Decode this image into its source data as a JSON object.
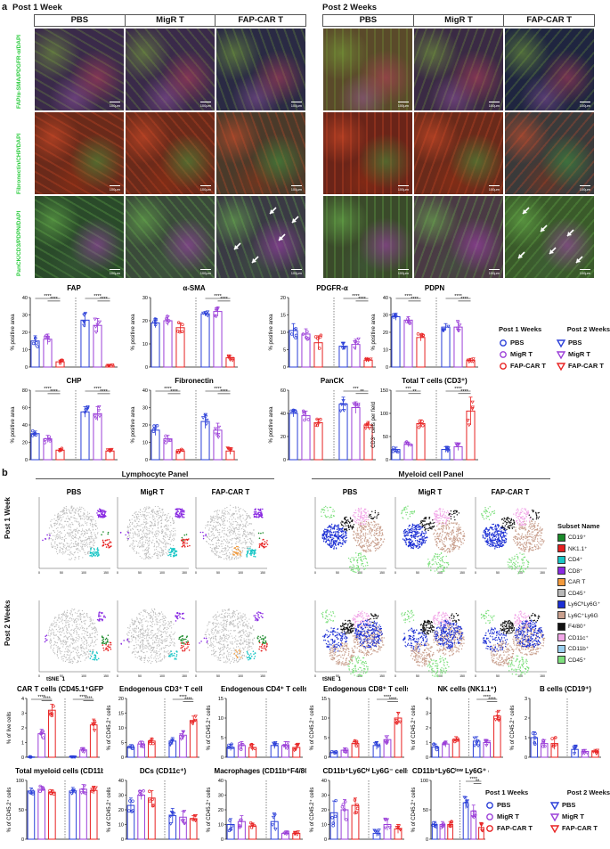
{
  "panel_a": {
    "letter": "a",
    "post1": "Post 1 Week",
    "post2": "Post 2 Weeks",
    "groups": [
      "PBS",
      "MigR T",
      "FAP-CAR T"
    ],
    "row_labels": [
      "FAP/α-SMA/PDGFR-α/DAPI",
      "Fibronectin/CHP/DAPI",
      "PanCK/CD3/PDPN/DAPI"
    ],
    "scale_bar": "100μm",
    "axis_area": "% positive area",
    "axis_cd3": "CD3⁺ cells per field",
    "legend": {
      "week1_title": "Post 1 Weeks",
      "week2_title": "Post 2 Weeks",
      "items": [
        "PBS",
        "MigR T",
        "FAP-CAR T"
      ]
    }
  },
  "panel_b": {
    "letter": "b",
    "lymph_title": "Lymphocyte Panel",
    "myeloid_title": "Myeloid cell Panel",
    "groups": [
      "PBS",
      "MigR T",
      "FAP-CAR T"
    ],
    "row1": "Post 1 Week",
    "row2": "Post 2 Weeks",
    "x_axis": "tSNE_1",
    "y_axis": "tSNE_2",
    "subset_title": "Subset Name",
    "subsets": [
      {
        "name": "CD19⁺",
        "color": "#1a8a2a"
      },
      {
        "name": "NK1.1⁺",
        "color": "#e62020"
      },
      {
        "name": "CD4⁺",
        "color": "#19c6c6"
      },
      {
        "name": "CD8⁺",
        "color": "#8a2be2"
      },
      {
        "name": "CAR T",
        "color": "#f39a3c"
      },
      {
        "name": "CD45⁺",
        "color": "#b8b8b8"
      },
      {
        "name": "Ly6CʰLy6G⁺",
        "color": "#1c2fd4"
      },
      {
        "name": "Ly6C⁺Ly6G",
        "color": "#c9a08e"
      },
      {
        "name": "F4/80⁺",
        "color": "#111111"
      },
      {
        "name": "CD11c⁺",
        "color": "#f2a7e8"
      },
      {
        "name": "CD11b⁺",
        "color": "#9ad0f0"
      },
      {
        "name": "CD45⁺ ",
        "color": "#7ee07e"
      }
    ],
    "tsne_ticks": [
      "0",
      "50",
      "100",
      "150"
    ],
    "legend": {
      "week1_title": "Post 1 Weeks",
      "week2_title": "Post 2 Weeks",
      "items": [
        "PBS",
        "MigR T",
        "FAP-CAR T"
      ]
    }
  },
  "colors": {
    "pbs": "#2b3fd8",
    "migr": "#9b3fd8",
    "car": "#e82323"
  },
  "chart_data": [
    {
      "type": "bar",
      "title": "FAP",
      "ylabel": "% positive area",
      "ylim": [
        0,
        40
      ],
      "yticks": [
        0,
        10,
        20,
        30,
        40
      ],
      "categories": [
        "PBS",
        "MigR T",
        "FAP-CAR T",
        "PBS",
        "MigR T",
        "FAP-CAR T"
      ],
      "values": [
        15,
        16,
        3,
        27,
        24,
        1
      ],
      "errors": [
        3,
        3,
        1,
        4,
        4,
        0.5
      ],
      "sig": [
        {
          "a": 0,
          "b": 2,
          "label": "****"
        },
        {
          "a": 1,
          "b": 2,
          "label": "****"
        },
        {
          "a": 3,
          "b": 5,
          "label": "****"
        },
        {
          "a": 4,
          "b": 5,
          "label": "****"
        }
      ]
    },
    {
      "type": "bar",
      "title": "α-SMA",
      "ylabel": "% positive area",
      "ylim": [
        0,
        30
      ],
      "yticks": [
        0,
        10,
        20,
        30
      ],
      "categories": [
        "PBS",
        "MigR T",
        "FAP-CAR T",
        "PBS",
        "MigR T",
        "FAP-CAR T"
      ],
      "values": [
        19,
        20,
        17,
        23,
        24,
        4
      ],
      "errors": [
        2,
        2,
        2,
        1,
        2,
        1
      ],
      "sig": [
        {
          "a": 3,
          "b": 5,
          "label": "****"
        },
        {
          "a": 4,
          "b": 5,
          "label": "****"
        }
      ]
    },
    {
      "type": "bar",
      "title": "PDGFR-α",
      "ylabel": "% positive area",
      "ylim": [
        0,
        20
      ],
      "yticks": [
        0,
        5,
        10,
        15,
        20
      ],
      "categories": [
        "PBS",
        "MigR T",
        "FAP-CAR T",
        "PBS",
        "MigR T",
        "FAP-CAR T"
      ],
      "values": [
        10.5,
        9.5,
        7,
        6,
        6.5,
        2
      ],
      "errors": [
        2,
        1.5,
        2,
        1,
        1.5,
        0.5
      ],
      "sig": [
        {
          "a": 3,
          "b": 5,
          "label": "****"
        },
        {
          "a": 4,
          "b": 5,
          "label": "****"
        }
      ]
    },
    {
      "type": "bar",
      "title": "PDPN",
      "ylabel": "% positive area",
      "ylim": [
        0,
        40
      ],
      "yticks": [
        0,
        10,
        20,
        30,
        40
      ],
      "categories": [
        "PBS",
        "MigR T",
        "FAP-CAR T",
        "PBS",
        "MigR T",
        "FAP-CAR T"
      ],
      "values": [
        29,
        27,
        17,
        23,
        23,
        4
      ],
      "errors": [
        2,
        2,
        2,
        2,
        3,
        1
      ],
      "sig": [
        {
          "a": 0,
          "b": 2,
          "label": "****"
        },
        {
          "a": 1,
          "b": 2,
          "label": "****"
        },
        {
          "a": 3,
          "b": 5,
          "label": "****"
        },
        {
          "a": 4,
          "b": 5,
          "label": "****"
        }
      ]
    },
    {
      "type": "bar",
      "title": "CHP",
      "ylabel": "% positive area",
      "ylim": [
        0,
        80
      ],
      "yticks": [
        0,
        20,
        40,
        60,
        80
      ],
      "categories": [
        "PBS",
        "MigR T",
        "FAP-CAR T",
        "PBS",
        "MigR T",
        "FAP-CAR T"
      ],
      "values": [
        30,
        24,
        11,
        55,
        53,
        10
      ],
      "errors": [
        3,
        4,
        2,
        6,
        8,
        2
      ],
      "sig": [
        {
          "a": 0,
          "b": 2,
          "label": "****"
        },
        {
          "a": 1,
          "b": 2,
          "label": "****"
        },
        {
          "a": 3,
          "b": 5,
          "label": "****"
        },
        {
          "a": 4,
          "b": 5,
          "label": "****"
        }
      ]
    },
    {
      "type": "bar",
      "title": "Fibronectin",
      "ylabel": "% positive area",
      "ylim": [
        0,
        40
      ],
      "yticks": [
        0,
        10,
        20,
        30,
        40
      ],
      "categories": [
        "PBS",
        "MigR T",
        "FAP-CAR T",
        "PBS",
        "MigR T",
        "FAP-CAR T"
      ],
      "values": [
        17,
        12,
        5,
        22,
        17,
        5
      ],
      "errors": [
        3,
        2,
        1,
        4,
        4,
        2
      ],
      "sig": [
        {
          "a": 0,
          "b": 2,
          "label": "****"
        },
        {
          "a": 1,
          "b": 2,
          "label": "****"
        },
        {
          "a": 3,
          "b": 5,
          "label": "****"
        },
        {
          "a": 4,
          "b": 5,
          "label": "****"
        }
      ]
    },
    {
      "type": "bar",
      "title": "PanCK",
      "ylabel": "% positive area",
      "ylim": [
        0,
        60
      ],
      "yticks": [
        0,
        20,
        40,
        60
      ],
      "categories": [
        "PBS",
        "MigR T",
        "FAP-CAR T",
        "PBS",
        "MigR T",
        "FAP-CAR T"
      ],
      "values": [
        40,
        38,
        32,
        48,
        45,
        30
      ],
      "errors": [
        3,
        4,
        3,
        6,
        5,
        3
      ],
      "sig": [
        {
          "a": 3,
          "b": 5,
          "label": "***"
        },
        {
          "a": 4,
          "b": 5,
          "label": "**"
        }
      ]
    },
    {
      "type": "bar",
      "title": "Total T cells (CD3⁺)",
      "ylabel": "CD3⁺ cells per field",
      "ylim": [
        0,
        150
      ],
      "yticks": [
        0,
        50,
        100,
        150
      ],
      "categories": [
        "PBS",
        "MigR T",
        "FAP-CAR T",
        "PBS",
        "MigR T",
        "FAP-CAR T"
      ],
      "values": [
        22,
        33,
        78,
        22,
        28,
        105
      ],
      "errors": [
        5,
        5,
        8,
        6,
        8,
        30
      ],
      "sig": [
        {
          "a": 0,
          "b": 2,
          "label": "***"
        },
        {
          "a": 1,
          "b": 2,
          "label": "**"
        },
        {
          "a": 3,
          "b": 5,
          "label": "****"
        },
        {
          "a": 4,
          "b": 5,
          "label": "****"
        }
      ]
    },
    {
      "type": "bar",
      "title": "CAR T cells (CD45.1⁺GFP⁺)",
      "ylabel": "% of live cells",
      "ylim": [
        0,
        4
      ],
      "yticks": [
        0,
        1,
        2,
        3,
        4
      ],
      "categories": [
        "PBS",
        "MigR T",
        "FAP-CAR T",
        "PBS",
        "MigR T",
        "FAP-CAR T"
      ],
      "values": [
        0.02,
        1.6,
        3.2,
        0.03,
        0.5,
        2.2
      ],
      "errors": [
        0.01,
        0.3,
        0.4,
        0.02,
        0.15,
        0.4
      ],
      "sig": [
        {
          "a": 0,
          "b": 2,
          "label": "****"
        },
        {
          "a": 1,
          "b": 2,
          "label": "****"
        },
        {
          "a": 3,
          "b": 5,
          "label": "****"
        },
        {
          "a": 4,
          "b": 5,
          "label": "****"
        }
      ]
    },
    {
      "type": "bar",
      "title": "Endogenous CD3⁺ T cells",
      "ylabel": "% of CD45.2⁺ cells",
      "ylim": [
        0,
        20
      ],
      "yticks": [
        0,
        5,
        10,
        15,
        20
      ],
      "categories": [
        "PBS",
        "MigR T",
        "FAP-CAR T",
        "PBS",
        "MigR T",
        "FAP-CAR T"
      ],
      "values": [
        3.5,
        4.5,
        5.5,
        5.5,
        7.5,
        12.5
      ],
      "errors": [
        0.8,
        1,
        1,
        1.2,
        1.5,
        1.5
      ],
      "sig": [
        {
          "a": 3,
          "b": 5,
          "label": "****"
        },
        {
          "a": 4,
          "b": 5,
          "label": "****"
        }
      ]
    },
    {
      "type": "bar",
      "title": "Endogenous CD4⁺ T cells",
      "ylabel": "% of CD45.2⁺ cells",
      "ylim": [
        0,
        15
      ],
      "yticks": [
        0,
        5,
        10,
        15
      ],
      "categories": [
        "PBS",
        "MigR T",
        "FAP-CAR T",
        "PBS",
        "MigR T",
        "FAP-CAR T"
      ],
      "values": [
        2.5,
        3,
        2.5,
        3,
        3,
        2.5
      ],
      "errors": [
        0.8,
        1,
        0.8,
        0.8,
        1,
        0.8
      ],
      "sig": []
    },
    {
      "type": "bar",
      "title": "Endogenous CD8⁺ T cells",
      "ylabel": "% of CD45.2⁺ cells",
      "ylim": [
        0,
        15
      ],
      "yticks": [
        0,
        5,
        10,
        15
      ],
      "categories": [
        "PBS",
        "MigR T",
        "FAP-CAR T",
        "PBS",
        "MigR T",
        "FAP-CAR T"
      ],
      "values": [
        1.2,
        1.8,
        3.5,
        3,
        4.5,
        10
      ],
      "errors": [
        0.4,
        0.6,
        0.8,
        1,
        1,
        1.5
      ],
      "sig": [
        {
          "a": 3,
          "b": 5,
          "label": "****"
        },
        {
          "a": 4,
          "b": 5,
          "label": "****"
        }
      ]
    },
    {
      "type": "bar",
      "title": "NK cells (NK1.1⁺)",
      "ylabel": "% of CD45.2⁺ cells",
      "ylim": [
        0,
        4
      ],
      "yticks": [
        0,
        1,
        2,
        3,
        4
      ],
      "categories": [
        "PBS",
        "MigR T",
        "FAP-CAR T",
        "PBS",
        "MigR T",
        "FAP-CAR T"
      ],
      "values": [
        0.7,
        0.9,
        1.2,
        1.1,
        1.0,
        2.8
      ],
      "errors": [
        0.2,
        0.2,
        0.2,
        0.3,
        0.2,
        0.3
      ],
      "sig": [
        {
          "a": 3,
          "b": 5,
          "label": "****"
        },
        {
          "a": 4,
          "b": 5,
          "label": "****"
        }
      ]
    },
    {
      "type": "bar",
      "title": "B cells (CD19⁺)",
      "ylabel": "% of CD45.2⁺ cells",
      "ylim": [
        0,
        3
      ],
      "yticks": [
        0,
        1,
        2,
        3
      ],
      "categories": [
        "PBS",
        "MigR T",
        "FAP-CAR T",
        "PBS",
        "MigR T",
        "FAP-CAR T"
      ],
      "values": [
        1.0,
        0.7,
        0.7,
        0.4,
        0.3,
        0.3
      ],
      "errors": [
        0.3,
        0.2,
        0.3,
        0.2,
        0.1,
        0.1
      ],
      "sig": []
    },
    {
      "type": "bar",
      "title": "Total myeloid cells (CD11b⁺)",
      "ylabel": "% of CD45.2⁺ cells",
      "ylim": [
        0,
        100
      ],
      "yticks": [
        0,
        50,
        100
      ],
      "categories": [
        "PBS",
        "MigR T",
        "FAP-CAR T",
        "PBS",
        "MigR T",
        "FAP-CAR T"
      ],
      "values": [
        82,
        85,
        80,
        82,
        85,
        83
      ],
      "errors": [
        5,
        5,
        4,
        6,
        8,
        6
      ],
      "sig": []
    },
    {
      "type": "bar",
      "title": "DCs (CD11c⁺)",
      "ylabel": "% of CD45.2⁺ cells",
      "ylim": [
        0,
        40
      ],
      "yticks": [
        0,
        10,
        20,
        30,
        40
      ],
      "categories": [
        "PBS",
        "MigR T",
        "FAP-CAR T",
        "PBS",
        "MigR T",
        "FAP-CAR T"
      ],
      "values": [
        23,
        30,
        28,
        16,
        15,
        14
      ],
      "errors": [
        5,
        3,
        5,
        5,
        4,
        2
      ],
      "sig": []
    },
    {
      "type": "bar",
      "title": "Macrophages (CD11b⁺F4/80⁺)",
      "ylabel": "% of CD45.2⁺ cells",
      "ylim": [
        0,
        40
      ],
      "yticks": [
        0,
        10,
        20,
        30,
        40
      ],
      "categories": [
        "PBS",
        "MigR T",
        "FAP-CAR T",
        "PBS",
        "MigR T",
        "FAP-CAR T"
      ],
      "values": [
        10,
        12,
        9,
        12,
        4,
        4
      ],
      "errors": [
        4,
        4,
        2,
        5,
        1,
        1
      ],
      "sig": []
    },
    {
      "type": "bar",
      "title": "CD11b⁺Ly6Cʰⁱ Ly6G⁻ cells",
      "ylabel": "% of CD45.2⁺ cells",
      "ylim": [
        0,
        40
      ],
      "yticks": [
        0,
        10,
        20,
        30,
        40
      ],
      "categories": [
        "PBS",
        "MigR T",
        "FAP-CAR T",
        "PBS",
        "MigR T",
        "FAP-CAR T"
      ],
      "values": [
        18,
        20,
        23,
        4,
        10,
        7
      ],
      "errors": [
        8,
        7,
        5,
        2,
        4,
        3
      ],
      "sig": []
    },
    {
      "type": "bar",
      "title": "CD11b⁺Ly6Cˡᵒʷ Ly6G⁺ cells",
      "ylabel": "% of CD45.2⁺ cells",
      "ylim": [
        0,
        100
      ],
      "yticks": [
        0,
        50,
        100
      ],
      "categories": [
        "PBS",
        "MigR T",
        "FAP-CAR T",
        "PBS",
        "MigR T",
        "FAP-CAR T"
      ],
      "values": [
        25,
        25,
        25,
        62,
        48,
        20
      ],
      "errors": [
        5,
        5,
        5,
        10,
        10,
        6
      ],
      "sig": [
        {
          "a": 3,
          "b": 5,
          "label": "****"
        },
        {
          "a": 4,
          "b": 5,
          "label": "**"
        }
      ]
    }
  ]
}
